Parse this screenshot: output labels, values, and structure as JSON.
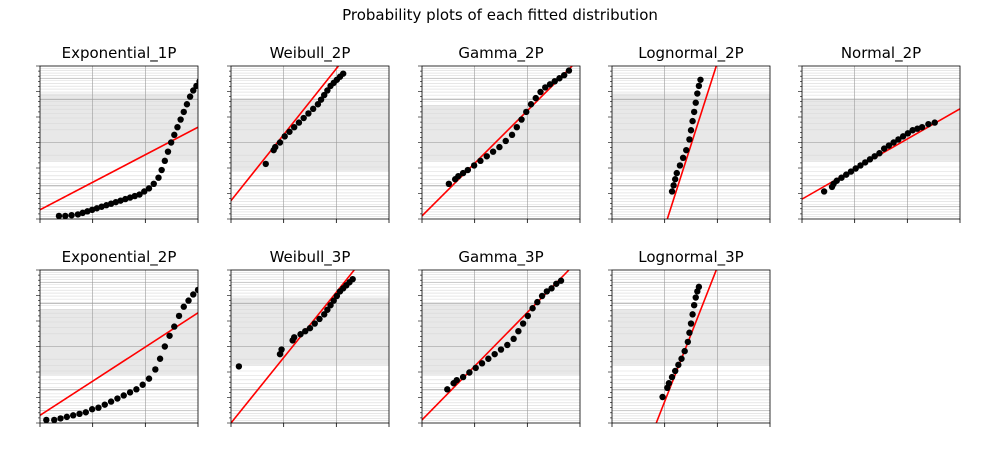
{
  "chart_data": {
    "type": "scatter",
    "title": "Probability plots of each fitted distribution",
    "colors": {
      "points": "#000000",
      "fit_line": "#ff0000",
      "grid_major": "#9a9a9a",
      "grid_minor": "#d9d9d9",
      "shade": "#e8e8e8"
    },
    "xlabel": "",
    "ylabel": "",
    "axis_ticks_labeled": false,
    "subplots": [
      {
        "title": "Exponential_1P",
        "xlim": [
          0,
          100
        ],
        "ylim": [
          0,
          100
        ],
        "fit_line": [
          [
            0,
            6
          ],
          [
            100,
            60
          ]
        ],
        "points": [
          [
            12,
            2
          ],
          [
            16,
            2
          ],
          [
            20,
            2.5
          ],
          [
            24,
            3
          ],
          [
            27,
            4
          ],
          [
            30,
            5
          ],
          [
            33,
            6
          ],
          [
            36,
            7
          ],
          [
            39,
            8
          ],
          [
            42,
            9
          ],
          [
            45,
            10
          ],
          [
            48,
            11
          ],
          [
            51,
            12
          ],
          [
            54,
            13
          ],
          [
            57,
            14
          ],
          [
            60,
            15
          ],
          [
            63,
            16
          ],
          [
            66,
            18
          ],
          [
            69,
            20
          ],
          [
            72,
            23
          ],
          [
            75,
            27
          ],
          [
            77,
            32
          ],
          [
            79,
            38
          ],
          [
            81,
            44
          ],
          [
            83,
            50
          ],
          [
            85,
            55
          ],
          [
            87,
            60
          ],
          [
            89,
            65
          ],
          [
            91,
            70
          ],
          [
            93,
            75
          ],
          [
            95,
            80
          ],
          [
            97,
            84
          ],
          [
            99,
            87
          ],
          [
            101,
            90
          ],
          [
            103,
            93
          ],
          [
            105,
            96
          ]
        ]
      },
      {
        "title": "Weibull_2P",
        "xlim": [
          0,
          100
        ],
        "ylim": [
          0,
          100
        ],
        "fit_line": [
          [
            0,
            12
          ],
          [
            68,
            100
          ]
        ],
        "points": [
          [
            22,
            36
          ],
          [
            27,
            45
          ],
          [
            28,
            47
          ],
          [
            31,
            50
          ],
          [
            34,
            54
          ],
          [
            37,
            57
          ],
          [
            40,
            60
          ],
          [
            43,
            63
          ],
          [
            46,
            66
          ],
          [
            49,
            69
          ],
          [
            52,
            72
          ],
          [
            55,
            75
          ],
          [
            57,
            78
          ],
          [
            59,
            81
          ],
          [
            61,
            84
          ],
          [
            63,
            87
          ],
          [
            65,
            89
          ],
          [
            67,
            91
          ],
          [
            69,
            93
          ],
          [
            71,
            95
          ]
        ]
      },
      {
        "title": "Gamma_2P",
        "xlim": [
          0,
          100
        ],
        "ylim": [
          0,
          100
        ],
        "fit_line": [
          [
            0,
            2
          ],
          [
            95,
            100
          ]
        ],
        "points": [
          [
            17,
            23
          ],
          [
            21,
            26
          ],
          [
            23,
            28
          ],
          [
            26,
            30
          ],
          [
            29,
            32
          ],
          [
            33,
            35
          ],
          [
            37,
            38
          ],
          [
            41,
            41
          ],
          [
            45,
            44
          ],
          [
            49,
            47
          ],
          [
            53,
            51
          ],
          [
            57,
            55
          ],
          [
            60,
            60
          ],
          [
            63,
            65
          ],
          [
            66,
            70
          ],
          [
            69,
            75
          ],
          [
            72,
            79
          ],
          [
            75,
            83
          ],
          [
            78,
            86
          ],
          [
            81,
            88
          ],
          [
            84,
            90
          ],
          [
            87,
            92
          ],
          [
            90,
            94
          ],
          [
            93,
            97
          ]
        ]
      },
      {
        "title": "Lognormal_2P",
        "xlim": [
          0,
          100
        ],
        "ylim": [
          0,
          100
        ],
        "fit_line": [
          [
            35,
            0
          ],
          [
            66,
            100
          ]
        ],
        "points": [
          [
            38,
            18
          ],
          [
            39,
            22
          ],
          [
            40,
            26
          ],
          [
            41,
            30
          ],
          [
            43,
            35
          ],
          [
            45,
            40
          ],
          [
            47,
            45
          ],
          [
            49,
            52
          ],
          [
            50,
            58
          ],
          [
            51,
            64
          ],
          [
            52,
            70
          ],
          [
            53,
            76
          ],
          [
            54,
            82
          ],
          [
            55,
            87
          ],
          [
            56,
            91
          ]
        ]
      },
      {
        "title": "Normal_2P",
        "xlim": [
          0,
          100
        ],
        "ylim": [
          0,
          100
        ],
        "fit_line": [
          [
            0,
            13
          ],
          [
            100,
            72
          ]
        ],
        "points": [
          [
            14,
            18
          ],
          [
            19,
            21
          ],
          [
            20,
            23
          ],
          [
            22,
            25
          ],
          [
            25,
            27
          ],
          [
            28,
            29
          ],
          [
            31,
            31
          ],
          [
            34,
            33
          ],
          [
            37,
            35
          ],
          [
            40,
            37
          ],
          [
            43,
            39
          ],
          [
            46,
            41
          ],
          [
            49,
            43
          ],
          [
            52,
            46
          ],
          [
            55,
            48
          ],
          [
            58,
            50
          ],
          [
            61,
            52
          ],
          [
            64,
            54
          ],
          [
            67,
            56
          ],
          [
            70,
            58
          ],
          [
            73,
            59
          ],
          [
            76,
            60
          ],
          [
            80,
            62
          ],
          [
            84,
            63
          ]
        ]
      },
      {
        "title": "Exponential_2P",
        "xlim": [
          0,
          100
        ],
        "ylim": [
          0,
          100
        ],
        "fit_line": [
          [
            0,
            5
          ],
          [
            100,
            72
          ]
        ],
        "points": [
          [
            4,
            2
          ],
          [
            9,
            2
          ],
          [
            13,
            3
          ],
          [
            17,
            4
          ],
          [
            21,
            5
          ],
          [
            25,
            6
          ],
          [
            29,
            7
          ],
          [
            33,
            9
          ],
          [
            37,
            10
          ],
          [
            41,
            12
          ],
          [
            45,
            14
          ],
          [
            49,
            16
          ],
          [
            53,
            18
          ],
          [
            57,
            20
          ],
          [
            61,
            22
          ],
          [
            65,
            25
          ],
          [
            69,
            29
          ],
          [
            73,
            35
          ],
          [
            76,
            42
          ],
          [
            79,
            50
          ],
          [
            82,
            57
          ],
          [
            85,
            63
          ],
          [
            88,
            70
          ],
          [
            91,
            76
          ],
          [
            94,
            80
          ],
          [
            97,
            84
          ],
          [
            100,
            87
          ],
          [
            103,
            91
          ],
          [
            105,
            94
          ]
        ]
      },
      {
        "title": "Weibull_3P",
        "xlim": [
          0,
          100
        ],
        "ylim": [
          0,
          100
        ],
        "fit_line": [
          [
            0,
            0
          ],
          [
            78,
            100
          ]
        ],
        "points": [
          [
            5,
            37
          ],
          [
            31,
            45
          ],
          [
            32,
            48
          ],
          [
            39,
            54
          ],
          [
            40,
            56
          ],
          [
            44,
            58
          ],
          [
            47,
            60
          ],
          [
            50,
            62
          ],
          [
            53,
            65
          ],
          [
            56,
            68
          ],
          [
            59,
            71
          ],
          [
            61,
            74
          ],
          [
            63,
            77
          ],
          [
            65,
            80
          ],
          [
            67,
            83
          ],
          [
            69,
            86
          ],
          [
            71,
            88
          ],
          [
            73,
            90
          ],
          [
            75,
            92
          ],
          [
            77,
            94
          ]
        ]
      },
      {
        "title": "Gamma_3P",
        "xlim": [
          0,
          100
        ],
        "ylim": [
          0,
          100
        ],
        "fit_line": [
          [
            0,
            2
          ],
          [
            93,
            100
          ]
        ],
        "points": [
          [
            16,
            22
          ],
          [
            20,
            26
          ],
          [
            22,
            28
          ],
          [
            26,
            30
          ],
          [
            30,
            33
          ],
          [
            34,
            36
          ],
          [
            38,
            39
          ],
          [
            42,
            42
          ],
          [
            46,
            45
          ],
          [
            50,
            48
          ],
          [
            54,
            51
          ],
          [
            58,
            55
          ],
          [
            61,
            60
          ],
          [
            64,
            65
          ],
          [
            67,
            70
          ],
          [
            70,
            75
          ],
          [
            73,
            79
          ],
          [
            76,
            83
          ],
          [
            79,
            86
          ],
          [
            82,
            88
          ],
          [
            85,
            91
          ],
          [
            88,
            93
          ]
        ]
      },
      {
        "title": "Lognormal_3P",
        "xlim": [
          0,
          100
        ],
        "ylim": [
          0,
          100
        ],
        "fit_line": [
          [
            28,
            0
          ],
          [
            66,
            100
          ]
        ],
        "points": [
          [
            32,
            17
          ],
          [
            35,
            23
          ],
          [
            36,
            26
          ],
          [
            38,
            30
          ],
          [
            40,
            34
          ],
          [
            42,
            38
          ],
          [
            44,
            42
          ],
          [
            46,
            47
          ],
          [
            48,
            53
          ],
          [
            49,
            59
          ],
          [
            50,
            65
          ],
          [
            51,
            71
          ],
          [
            52,
            77
          ],
          [
            53,
            82
          ],
          [
            54,
            86
          ],
          [
            55,
            89
          ]
        ]
      }
    ]
  }
}
